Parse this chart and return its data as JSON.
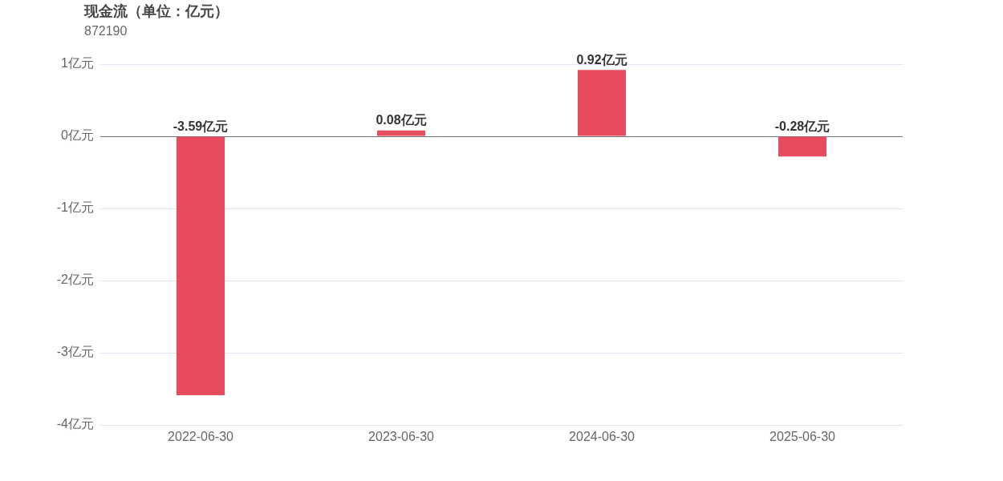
{
  "chart_data": {
    "type": "bar",
    "title": "现金流（单位：亿元）",
    "subtitle": "872190",
    "categories": [
      "2022-06-30",
      "2023-06-30",
      "2024-06-30",
      "2025-06-30"
    ],
    "values": [
      -3.59,
      0.08,
      0.92,
      -0.28
    ],
    "color": "#e64c5e",
    "value_labels": [
      "-3.59亿元",
      "0.08亿元",
      "0.92亿元",
      "-0.28亿元"
    ],
    "ylim": [
      -4,
      1
    ],
    "yticks": [
      {
        "value": -4,
        "label": "-4亿元"
      },
      {
        "value": -3,
        "label": "-3亿元"
      },
      {
        "value": -2,
        "label": "-2亿元"
      },
      {
        "value": -1,
        "label": "-1亿元"
      },
      {
        "value": 0,
        "label": "0亿元"
      },
      {
        "value": 1,
        "label": "1亿元"
      }
    ],
    "grid": "y",
    "legend": false
  }
}
